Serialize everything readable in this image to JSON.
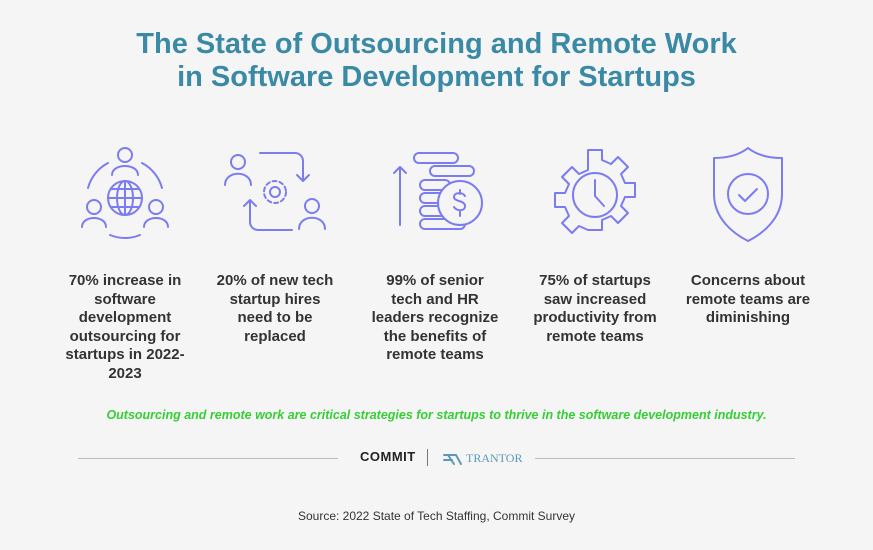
{
  "title": {
    "line1": "The State of Outsourcing and Remote Work",
    "line2": "in Software Development for Startups"
  },
  "stats": [
    {
      "icon": "global-team-icon",
      "text": "70% increase in software development outsourcing for startups in 2022-2023"
    },
    {
      "icon": "people-exchange-gear-icon",
      "text": "20% of new tech startup hires need to be replaced"
    },
    {
      "icon": "coins-growth-icon",
      "text": "99% of senior tech and HR leaders recognize the benefits of remote teams"
    },
    {
      "icon": "gear-clock-icon",
      "text": "75% of startups saw increased productivity from remote teams"
    },
    {
      "icon": "shield-check-icon",
      "text": "Concerns about remote teams are diminishing"
    }
  ],
  "tagline": "Outsourcing and remote work are critical strategies for startups to thrive in the software development industry.",
  "logos": {
    "commit": "COMMIT",
    "trantor": "TRANTOR"
  },
  "source": "Source: 2022 State of Tech Staffing, Commit Survey",
  "colors": {
    "title": "#3a8aa6",
    "icon": "#7b7cf0",
    "tagline": "#35cf35"
  }
}
